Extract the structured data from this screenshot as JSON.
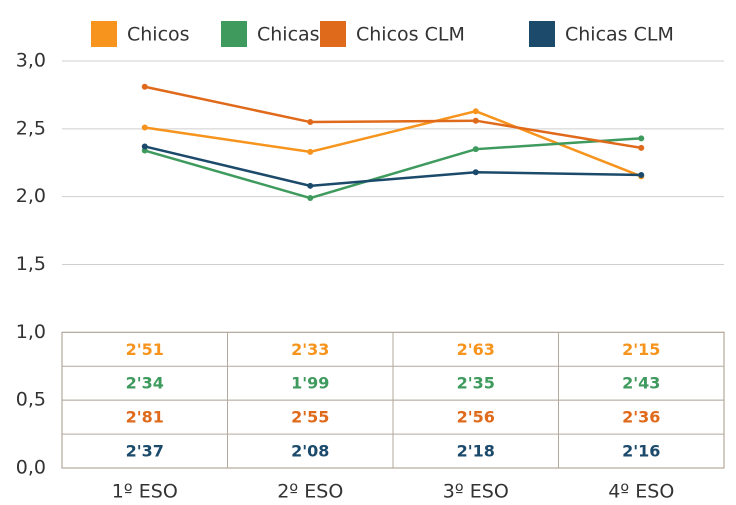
{
  "chart_data": {
    "type": "line",
    "categories": [
      "1º ESO",
      "2º ESO",
      "3º ESO",
      "4º ESO"
    ],
    "series": [
      {
        "name": "Chicos",
        "color": "#f7941d",
        "values": [
          2.51,
          2.33,
          2.63,
          2.15
        ],
        "value_labels": [
          "2'51",
          "2'33",
          "2'63",
          "2'15"
        ]
      },
      {
        "name": "Chicas",
        "color": "#3f9a5e",
        "values": [
          2.34,
          1.99,
          2.35,
          2.43
        ],
        "value_labels": [
          "2'34",
          "1'99",
          "2'35",
          "2'43"
        ]
      },
      {
        "name": "Chicos CLM",
        "color": "#e06a1b",
        "values": [
          2.81,
          2.55,
          2.56,
          2.36
        ],
        "value_labels": [
          "2'81",
          "2'55",
          "2'56",
          "2'36"
        ]
      },
      {
        "name": "Chicas CLM",
        "color": "#1b4a6b",
        "values": [
          2.37,
          2.08,
          2.18,
          2.16
        ],
        "value_labels": [
          "2'37",
          "2'08",
          "2'18",
          "2'16"
        ]
      }
    ],
    "ylim": [
      0,
      3
    ],
    "yticks": [
      {
        "value": 0,
        "label": "0,0"
      },
      {
        "value": 0.5,
        "label": "0,5"
      },
      {
        "value": 1,
        "label": "1,0"
      },
      {
        "value": 1.5,
        "label": "1,5"
      },
      {
        "value": 2,
        "label": "2,0"
      },
      {
        "value": 2.5,
        "label": "2,5"
      },
      {
        "value": 3,
        "label": "3,0"
      }
    ],
    "grid": true,
    "legend": "top"
  }
}
